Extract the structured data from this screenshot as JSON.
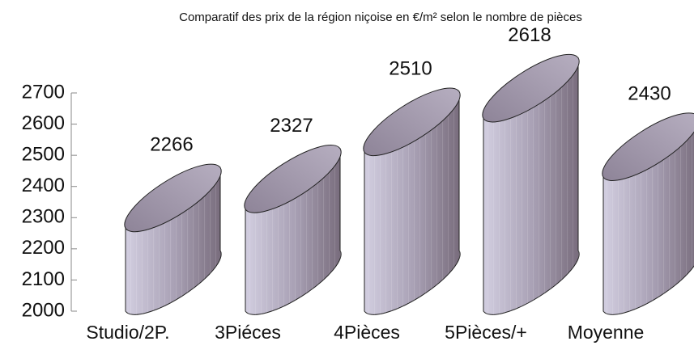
{
  "chart_data": {
    "type": "cylinder",
    "title": "Comparatif des prix de la région niçoise en €/m² selon le nombre de pièces",
    "categories": [
      "Studio/2P.",
      "3Piéces",
      "4Pièces",
      "5Pièces/+",
      "Moyenne"
    ],
    "values": [
      2266,
      2327,
      2510,
      2618,
      2430
    ],
    "color": "#b4aec6",
    "ylim": [
      2000,
      2700
    ],
    "yticks": [
      2000,
      2100,
      2200,
      2300,
      2400,
      2500,
      2600,
      2700
    ]
  }
}
